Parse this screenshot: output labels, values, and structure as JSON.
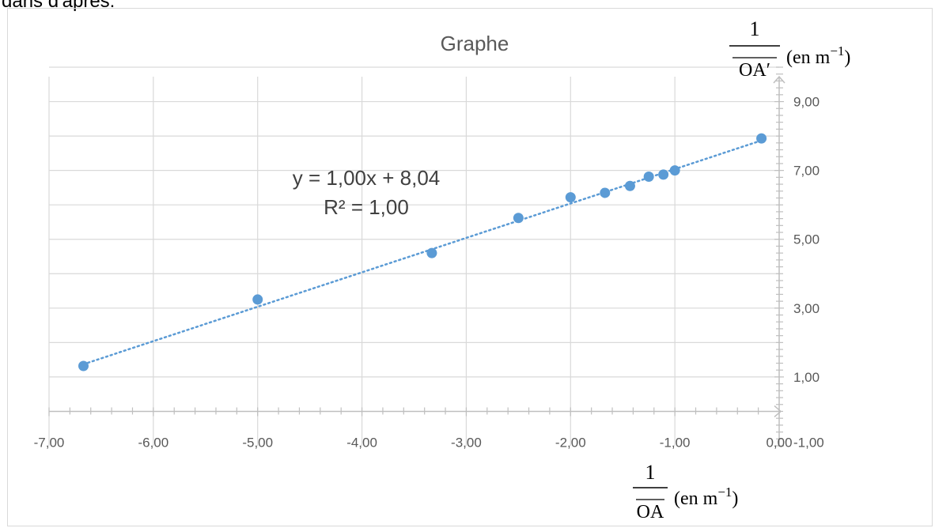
{
  "caption": "dans d'après:",
  "chart_data": {
    "type": "scatter",
    "title": "Graphe",
    "xlabel": {
      "num": "1",
      "den": "OA",
      "unit_prefix": "(en m",
      "unit_exp": "−1",
      "unit_suffix": ")"
    },
    "ylabel": {
      "num": "1",
      "den": "OA′",
      "unit_prefix": "(en m",
      "unit_exp": "−1",
      "unit_suffix": ")"
    },
    "xlim": [
      -7,
      0
    ],
    "ylim": [
      -1,
      10
    ],
    "x_ticks": [
      "-7,00",
      "-6,00",
      "-5,00",
      "-4,00",
      "-3,00",
      "-2,00",
      "-1,00",
      "0,00"
    ],
    "y_ticks": [
      "-1,00",
      "1,00",
      "3,00",
      "5,00",
      "7,00",
      "9,00"
    ],
    "grid": true,
    "points": [
      {
        "x": -6.67,
        "y": 1.32
      },
      {
        "x": -5.0,
        "y": 3.25
      },
      {
        "x": -3.33,
        "y": 4.6
      },
      {
        "x": -2.5,
        "y": 5.62
      },
      {
        "x": -2.0,
        "y": 6.22
      },
      {
        "x": -1.67,
        "y": 6.35
      },
      {
        "x": -1.43,
        "y": 6.55
      },
      {
        "x": -1.25,
        "y": 6.82
      },
      {
        "x": -1.11,
        "y": 6.88
      },
      {
        "x": -1.0,
        "y": 7.0
      },
      {
        "x": -0.17,
        "y": 7.93
      }
    ],
    "trendline": {
      "slope": 1.0,
      "intercept": 8.04,
      "x_range": [
        -6.67,
        -0.17
      ],
      "style": "dotted"
    },
    "equation": "y = 1,00x + 8,04",
    "r_squared": "R² = 1,00",
    "colors": {
      "marker": "#5b9bd5",
      "trend": "#5b9bd5",
      "grid": "#d9d9d9",
      "axis": "#bfbfbf",
      "tick_text": "#595959",
      "title": "#595959"
    }
  }
}
